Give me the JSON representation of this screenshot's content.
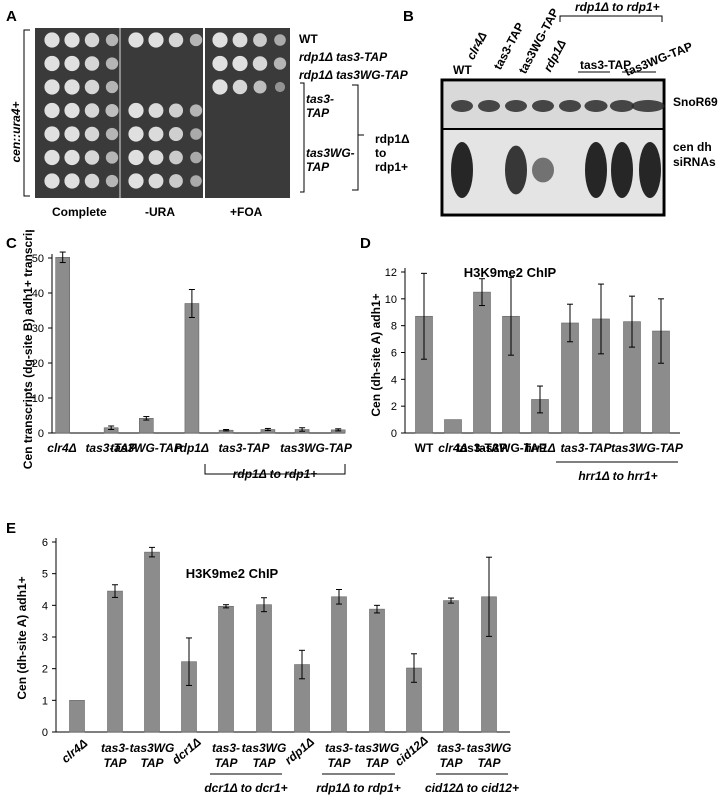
{
  "panels": {
    "A": "A",
    "B": "B",
    "C": "C",
    "D": "D",
    "E": "E"
  },
  "panelA": {
    "y_label": "cen::ura4+",
    "strains": [
      "WT",
      "rdp1Δ tas3-TAP",
      "rdp1Δ tas3WG-TAP"
    ],
    "group_strains": [
      "tas3-TAP",
      "tas3WG-TAP"
    ],
    "group_label": "rdp1Δ to rdp1+",
    "media": [
      "Complete",
      "-URA",
      "+FOA"
    ]
  },
  "panelB": {
    "lanes": [
      "WT",
      "clr4Δ",
      "tas3-TAP",
      "tas3WG-TAP",
      "rdp1Δ",
      "tas3-TAP",
      "tas3WG-TAP"
    ],
    "bracket_label": "rdp1Δ to rdp1+",
    "bands": [
      "SnoR69",
      "cen dh siRNAs"
    ]
  },
  "chart_data": [
    {
      "type": "bar",
      "panel": "C",
      "categories": [
        "clr4Δ",
        "tas3-TAP",
        "tas3WG-TAP",
        "rdp1Δ",
        "tas3-TAP",
        "tas3-TAP",
        "tas3WG-TAP",
        "tas3WG-TAP"
      ],
      "values": [
        50.2,
        1.5,
        4.2,
        37.0,
        0.8,
        1.0,
        1.0,
        0.9
      ],
      "errors": [
        1.5,
        0.5,
        0.5,
        4.0,
        0.2,
        0.3,
        0.5,
        0.3
      ],
      "ylabel": "Cen transcripts (dg-site B) adh1+ transcripts",
      "ylim": [
        0,
        50
      ],
      "yticks": [
        0,
        10,
        20,
        30,
        40,
        50
      ],
      "tick_labels": [
        "clr4Δ",
        "tas3-TAP",
        "tas3WG-TAP",
        "rdp1Δ",
        "tas3-TAP",
        "tas3WG-TAP"
      ],
      "group_label": "rdp1Δ to rdp1+"
    },
    {
      "type": "bar",
      "panel": "D",
      "title": "H3K9me2 ChIP",
      "categories": [
        "WT",
        "clr4Δ",
        "tas3-TAP",
        "tas3WG-TAP",
        "hrr1Δ",
        "tas3-TAP",
        "tas3-TAP",
        "tas3WG-TAP",
        "tas3WG-TAP"
      ],
      "values": [
        8.7,
        1.0,
        10.5,
        8.7,
        2.5,
        8.2,
        8.5,
        8.3,
        7.6
      ],
      "errors": [
        3.2,
        0.0,
        1.0,
        2.9,
        1.0,
        1.4,
        2.6,
        1.9,
        2.4
      ],
      "ylabel": "Cen (dh-site A) adh1+",
      "ylim": [
        0,
        12
      ],
      "yticks": [
        0,
        2,
        4,
        6,
        8,
        10,
        12
      ],
      "tick_labels": [
        "WT",
        "clr4Δ",
        "tas3-TAP",
        "tas3WG-TAP",
        "hrr1Δ",
        "tas3-TAP",
        "tas3WG-TAP"
      ],
      "group_label": "hrr1Δ to hrr1+"
    },
    {
      "type": "bar",
      "panel": "E",
      "title": "H3K9me2 ChIP",
      "categories": [
        "clr4Δ",
        "tas3-TAP",
        "tas3WG TAP",
        "dcr1Δ",
        "tas3-TAP",
        "tas3WG TAP",
        "rdp1Δ",
        "tas3-TAP",
        "tas3WG TAP",
        "cid12Δ",
        "tas3-TAP",
        "tas3WG TAP"
      ],
      "values": [
        1.0,
        4.45,
        5.68,
        2.22,
        3.97,
        4.02,
        2.13,
        4.27,
        3.88,
        2.02,
        4.15,
        4.27
      ],
      "errors": [
        0.0,
        0.2,
        0.15,
        0.75,
        0.05,
        0.22,
        0.45,
        0.23,
        0.12,
        0.45,
        0.08,
        1.25
      ],
      "ylabel": "Cen (dh-site A) adh1+",
      "ylim": [
        0,
        6
      ],
      "yticks": [
        0,
        1,
        2,
        3,
        4,
        5,
        6
      ],
      "tick_labels": [
        "clr4Δ",
        "tas3- TAP",
        "tas3WG TAP",
        "dcr1Δ",
        "tas3- TAP",
        "tas3WG TAP",
        "rdp1Δ",
        "tas3- TAP",
        "tas3WG TAP",
        "cid12Δ",
        "tas3- TAP",
        "tas3WG TAP"
      ],
      "group_labels": [
        "dcr1Δ to dcr1+",
        "rdp1Δ to rdp1+",
        "cid12Δ to cid12+"
      ]
    }
  ]
}
